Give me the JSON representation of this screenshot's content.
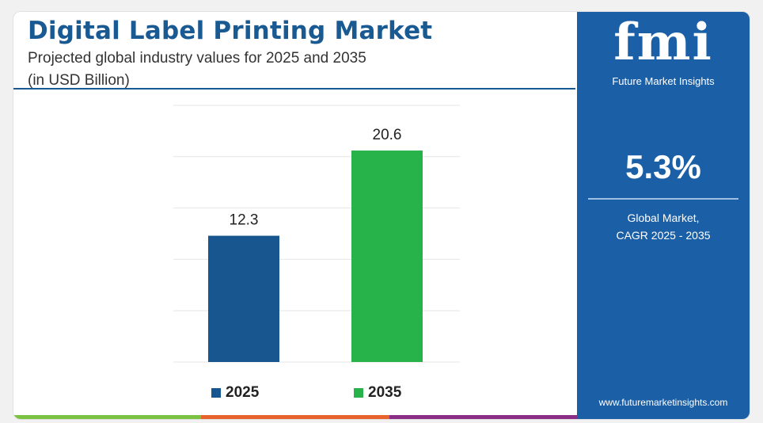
{
  "header": {
    "title": "Digital Label Printing Market",
    "subtitle_line1": "Projected global industry values for 2025 and 2035",
    "subtitle_line2": "(in USD Billion)"
  },
  "chart_data": {
    "type": "bar",
    "title": "Digital Label Printing Market",
    "categories": [
      "2025",
      "2035"
    ],
    "values": [
      12.3,
      20.6
    ],
    "value_labels": [
      "12.3",
      "20.6"
    ],
    "colors": [
      "#17568f",
      "#27b24a"
    ],
    "ylim": [
      0,
      25
    ],
    "grid": true,
    "legend_position": "bottom",
    "legend": [
      "2025",
      "2035"
    ]
  },
  "side_panel": {
    "logo_text": "fmi",
    "logo_subtitle": "Future Market Insights",
    "cagr_value": "5.3%",
    "cagr_label_line1": "Global Market,",
    "cagr_label_line2": "CAGR 2025 - 2035",
    "website": "www.futuremarketinsights.com",
    "background_color": "#1b5fa6"
  },
  "bottom_bar_colors": [
    "#7cc242",
    "#e8632b",
    "#8b2f86"
  ]
}
